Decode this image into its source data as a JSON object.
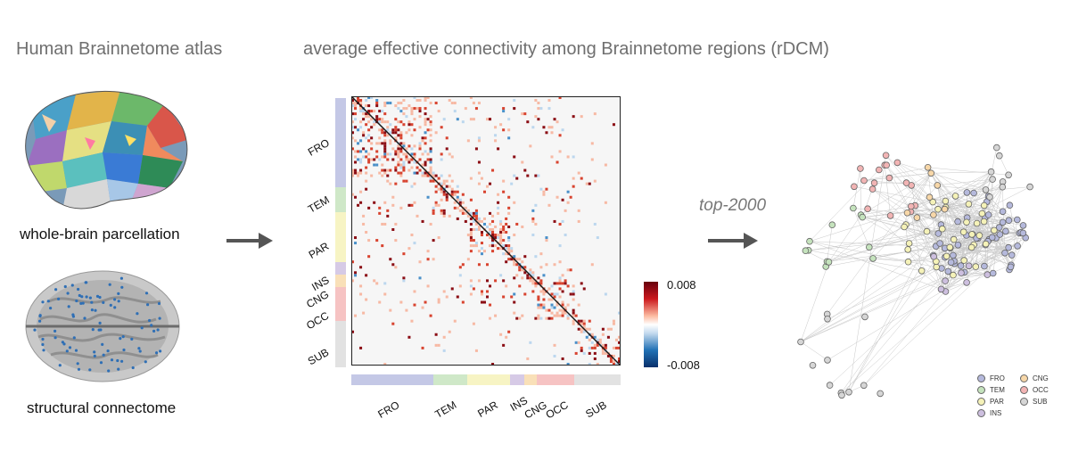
{
  "left_panel": {
    "heading": "Human Brainnetome atlas",
    "parcellation_caption": "whole-brain parcellation",
    "connectome_caption": "structural connectome"
  },
  "middle_panel": {
    "heading": "average effective connectivity among Brainnetome regions (rDCM)",
    "y_labels": [
      "FRO",
      "TEM",
      "PAR",
      "INS",
      "CNG",
      "OCC",
      "SUB"
    ],
    "x_labels": [
      "FRO",
      "TEM",
      "PAR",
      "INS",
      "CNG",
      "OCC",
      "SUB"
    ],
    "colorbar": {
      "max_label": "0.008",
      "min_label": "-0.008"
    }
  },
  "right_panel": {
    "top_label": "top-2000",
    "legend": [
      {
        "label": "FRO",
        "color": "#b5b9dc"
      },
      {
        "label": "TEM",
        "color": "#c5e3bd"
      },
      {
        "label": "PAR",
        "color": "#f5f2b8"
      },
      {
        "label": "INS",
        "color": "#cdbfdf"
      },
      {
        "label": "CNG",
        "color": "#f7d7a8"
      },
      {
        "label": "OCC",
        "color": "#f2b4b4"
      },
      {
        "label": "SUB",
        "color": "#d6d6d6"
      }
    ]
  },
  "colors": {
    "FRO": "#c4c8e6",
    "TEM": "#cfe8c8",
    "PAR": "#f7f4c4",
    "INS": "#d6cae6",
    "CNG": "#f9e0b8",
    "OCC": "#f6c3c3",
    "SUB": "#e2e2e2",
    "arrow": "#555555",
    "pos": "#a50f15",
    "neg": "#08519c"
  },
  "chart_data": {
    "type": "heatmap",
    "colorbar_range": [
      -0.008,
      0.008
    ],
    "modules": [
      "FRO",
      "TEM",
      "PAR",
      "INS",
      "CNG",
      "OCC",
      "SUB"
    ]
  }
}
